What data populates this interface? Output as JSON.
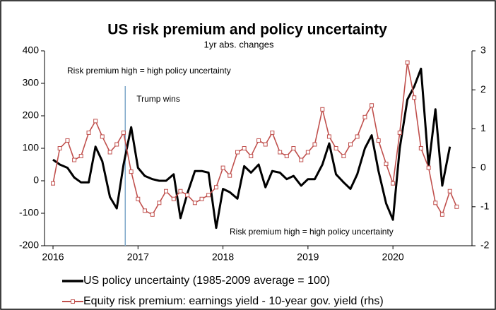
{
  "chart_data": {
    "type": "line",
    "title": "US risk premium and policy uncertainty",
    "subtitle": "1yr abs. changes",
    "annotations": [
      "Risk premium high = high policy uncertainty",
      "Risk premium high = high policy uncertainty"
    ],
    "vline": {
      "x": 2016.85,
      "label": "Trump wins",
      "color": "#7fa7c9"
    },
    "xlim": [
      2015.9,
      2020.93
    ],
    "xticks": [
      2016,
      2017,
      2018,
      2019,
      2020
    ],
    "ylim": [
      -200,
      400
    ],
    "yticks": [
      -200,
      -100,
      0,
      100,
      200,
      300,
      400
    ],
    "y2lim": [
      -2,
      3
    ],
    "y2ticks": [
      -2,
      -1,
      0,
      1,
      2,
      3
    ],
    "legend": "bottom",
    "series": [
      {
        "name": "US policy uncertainty (1985-2009 average = 100)",
        "color": "#000000",
        "axis": "y",
        "x": [
          2016.0,
          2016.08,
          2016.17,
          2016.25,
          2016.33,
          2016.42,
          2016.5,
          2016.58,
          2016.67,
          2016.75,
          2016.83,
          2016.92,
          2017.0,
          2017.08,
          2017.17,
          2017.25,
          2017.33,
          2017.42,
          2017.5,
          2017.58,
          2017.67,
          2017.75,
          2017.83,
          2017.92,
          2018.0,
          2018.08,
          2018.17,
          2018.25,
          2018.33,
          2018.42,
          2018.5,
          2018.58,
          2018.67,
          2018.75,
          2018.83,
          2018.92,
          2019.0,
          2019.08,
          2019.17,
          2019.25,
          2019.33,
          2019.42,
          2019.5,
          2019.58,
          2019.67,
          2019.75,
          2019.83,
          2019.92,
          2020.0,
          2020.08,
          2020.17,
          2020.25,
          2020.33,
          2020.42,
          2020.5,
          2020.58,
          2020.67
        ],
        "values": [
          65,
          50,
          40,
          10,
          -5,
          -5,
          105,
          60,
          -50,
          -85,
          50,
          165,
          40,
          15,
          5,
          0,
          0,
          20,
          -115,
          -40,
          30,
          30,
          25,
          -145,
          -25,
          -35,
          -55,
          45,
          25,
          50,
          -20,
          30,
          25,
          5,
          15,
          -15,
          5,
          5,
          50,
          115,
          20,
          -5,
          -25,
          20,
          100,
          140,
          30,
          -70,
          -120,
          100,
          250,
          290,
          345,
          45,
          220,
          -15,
          105
        ]
      },
      {
        "name": "Equity risk premium: earnings yield - 10-year gov. yield (rhs)",
        "color": "#c0504d",
        "axis": "y2",
        "x": [
          2016.0,
          2016.08,
          2016.17,
          2016.25,
          2016.33,
          2016.42,
          2016.5,
          2016.58,
          2016.67,
          2016.75,
          2016.83,
          2016.92,
          2017.0,
          2017.08,
          2017.17,
          2017.25,
          2017.33,
          2017.42,
          2017.5,
          2017.58,
          2017.67,
          2017.75,
          2017.83,
          2017.92,
          2018.0,
          2018.08,
          2018.17,
          2018.25,
          2018.33,
          2018.42,
          2018.5,
          2018.58,
          2018.67,
          2018.75,
          2018.83,
          2018.92,
          2019.0,
          2019.08,
          2019.17,
          2019.25,
          2019.33,
          2019.42,
          2019.5,
          2019.58,
          2019.67,
          2019.75,
          2019.83,
          2019.92,
          2020.0,
          2020.08,
          2020.17,
          2020.25,
          2020.33,
          2020.42,
          2020.5,
          2020.58,
          2020.67,
          2020.75
        ],
        "values": [
          -0.4,
          0.5,
          0.7,
          0.2,
          0.3,
          0.9,
          1.2,
          0.8,
          0.4,
          0.6,
          0.9,
          -0.1,
          -0.8,
          -1.1,
          -1.2,
          -0.9,
          -0.6,
          -0.8,
          -0.6,
          -0.7,
          -0.9,
          -0.8,
          -0.7,
          -0.5,
          0.0,
          -0.2,
          0.4,
          0.5,
          0.3,
          0.7,
          0.6,
          0.9,
          0.4,
          0.3,
          0.5,
          0.2,
          0.4,
          0.6,
          1.5,
          0.8,
          0.5,
          0.3,
          0.6,
          0.8,
          1.3,
          1.6,
          0.7,
          0.1,
          -0.4,
          0.9,
          2.7,
          1.8,
          0.5,
          0.0,
          -0.9,
          -1.2,
          -0.6,
          -1.0
        ]
      }
    ]
  }
}
